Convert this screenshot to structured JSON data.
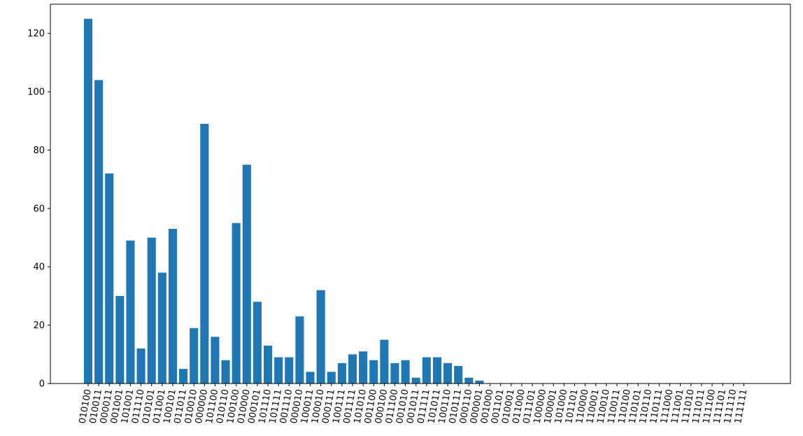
{
  "chart_data": {
    "type": "bar",
    "title": "",
    "xlabel": "",
    "ylabel": "",
    "ylim": [
      0,
      130
    ],
    "yticks": [
      "0",
      "20",
      "40",
      "60",
      "80",
      "100",
      "120"
    ],
    "ytick_values": [
      0,
      20,
      40,
      60,
      80,
      100,
      120
    ],
    "bar_color": "#1f77b4",
    "grid": false,
    "categories": [
      "010100",
      "010011",
      "000011",
      "001001",
      "101001",
      "011110",
      "010101",
      "011001",
      "100101",
      "011011",
      "010010",
      "000000",
      "101100",
      "010110",
      "100100",
      "010000",
      "000101",
      "101110",
      "101111",
      "001110",
      "000010",
      "100011",
      "100010",
      "000111",
      "100111",
      "001111",
      "101010",
      "001100",
      "000100",
      "011100",
      "001010",
      "001011",
      "011111",
      "101011",
      "100110",
      "010111",
      "000110",
      "000001",
      "001000",
      "001101",
      "010001",
      "011000",
      "011101",
      "100000",
      "100001",
      "101000",
      "101101",
      "110000",
      "110001",
      "110010",
      "110011",
      "110100",
      "110101",
      "110110",
      "110111",
      "111000",
      "111001",
      "111010",
      "111011",
      "111100",
      "111101",
      "111110",
      "111111"
    ],
    "values": [
      125,
      104,
      72,
      30,
      49,
      12,
      50,
      38,
      53,
      5,
      19,
      89,
      16,
      8,
      55,
      75,
      28,
      13,
      9,
      9,
      23,
      4,
      32,
      4,
      7,
      10,
      11,
      8,
      15,
      7,
      8,
      2,
      9,
      9,
      7,
      6,
      2,
      1,
      0,
      0,
      0,
      0,
      0,
      0,
      0,
      0,
      0,
      0,
      0,
      0,
      0,
      0,
      0,
      0,
      0,
      0,
      0,
      0,
      0,
      0,
      0,
      0,
      0
    ]
  }
}
